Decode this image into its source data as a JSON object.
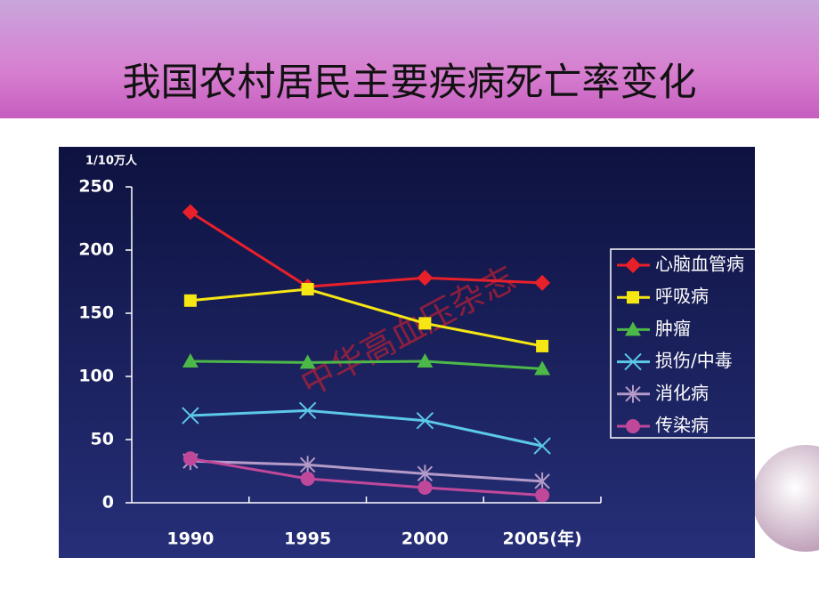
{
  "header": {
    "title": "我国农村居民主要疾病死亡率变化"
  },
  "chart_data": {
    "type": "line",
    "y_label": "1/10万人",
    "categories": [
      "1990",
      "1995",
      "2000",
      "2005(年)"
    ],
    "series": [
      {
        "name": "心脑血管病",
        "color": "#e8202a",
        "marker": "diamond",
        "values": [
          230,
          171,
          178,
          174
        ]
      },
      {
        "name": "呼吸病",
        "color": "#f5e614",
        "marker": "square",
        "values": [
          160,
          169,
          142,
          124
        ]
      },
      {
        "name": "肿瘤",
        "color": "#4cb848",
        "marker": "triangle",
        "values": [
          112,
          111,
          112,
          106
        ]
      },
      {
        "name": "损伤/中毒",
        "color": "#5cc8e8",
        "marker": "x",
        "values": [
          69,
          73,
          65,
          45
        ]
      },
      {
        "name": "消化病",
        "color": "#b49ac8",
        "marker": "star",
        "values": [
          33,
          30,
          23,
          17
        ]
      },
      {
        "name": "传染病",
        "color": "#c0489a",
        "marker": "circle",
        "values": [
          35,
          19,
          12,
          6
        ]
      }
    ],
    "ylim": [
      0,
      250
    ],
    "yticks": [
      0,
      50,
      100,
      150,
      200,
      250
    ],
    "legend": "right",
    "watermark": "中华高血压杂志"
  }
}
